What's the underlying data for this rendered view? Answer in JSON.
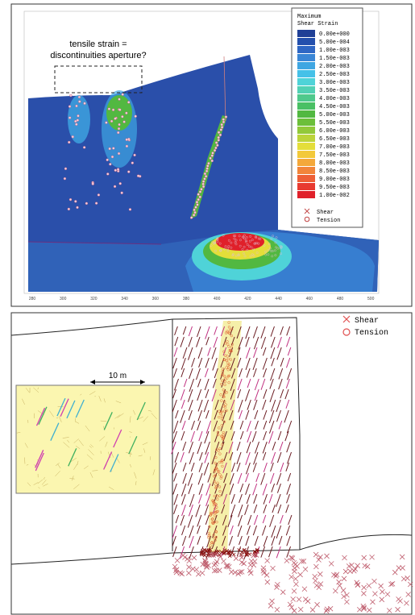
{
  "top_panel": {
    "annotation_lines": [
      "tensile strain =",
      "discontinuities aperture?"
    ],
    "legend": {
      "title_lines": [
        "Maximum",
        "Shear Strain"
      ],
      "entries": [
        {
          "label": "0.00e+000",
          "color": "#1f3f96"
        },
        {
          "label": "5.00e-004",
          "color": "#2450ad"
        },
        {
          "label": "1.00e-003",
          "color": "#2f67c4"
        },
        {
          "label": "1.50e-003",
          "color": "#3a86d6"
        },
        {
          "label": "2.00e-003",
          "color": "#3fa6e2"
        },
        {
          "label": "2.50e-003",
          "color": "#45c1e8"
        },
        {
          "label": "3.00e-003",
          "color": "#4fd3d8"
        },
        {
          "label": "3.50e-003",
          "color": "#52d1b4"
        },
        {
          "label": "4.00e-003",
          "color": "#4fc98c"
        },
        {
          "label": "4.50e-003",
          "color": "#49c064"
        },
        {
          "label": "5.00e-003",
          "color": "#52b841"
        },
        {
          "label": "5.50e-003",
          "color": "#6cbf3a"
        },
        {
          "label": "6.00e-003",
          "color": "#92c93a"
        },
        {
          "label": "6.50e-003",
          "color": "#bcd43a"
        },
        {
          "label": "7.00e-003",
          "color": "#e4de3a"
        },
        {
          "label": "7.50e-003",
          "color": "#f3c93a"
        },
        {
          "label": "8.00e-003",
          "color": "#f4a83a"
        },
        {
          "label": "8.50e-003",
          "color": "#f2853a"
        },
        {
          "label": "9.00e-003",
          "color": "#ee5f36"
        },
        {
          "label": "9.50e-003",
          "color": "#e83a30"
        },
        {
          "label": "1.00e-002",
          "color": "#e0202a"
        }
      ],
      "symbols": [
        "Shear",
        "Tension"
      ]
    },
    "x_tick_labels": [
      "280",
      "300",
      "320",
      "340",
      "360",
      "380",
      "400",
      "420",
      "440",
      "460",
      "480",
      "500"
    ]
  },
  "bottom_panel": {
    "legend": [
      "Shear",
      "Tension"
    ],
    "scale_label": "10 m"
  }
}
